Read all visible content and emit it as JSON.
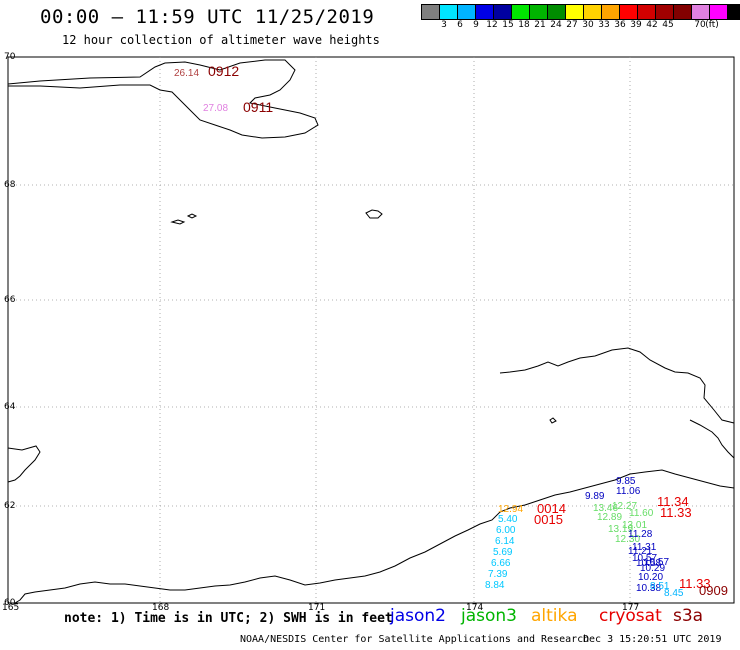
{
  "header": {
    "title": "00:00 – 11:59 UTC 11/25/2019",
    "subtitle": "12 hour collection of altimeter wave heights"
  },
  "colorbar": {
    "unit_label": "(ft)",
    "colors": [
      "#7f7f7f",
      "#00e5ff",
      "#00b4ff",
      "#0000e6",
      "#0000a0",
      "#00e600",
      "#00b400",
      "#008c00",
      "#ffff00",
      "#ffd200",
      "#ffa500",
      "#ff0000",
      "#d20000",
      "#a00000",
      "#820000",
      "#e080e0",
      "#ff00ff",
      "#000000"
    ],
    "labels": [
      "3",
      "6",
      "9",
      "12",
      "15",
      "18",
      "21",
      "24",
      "27",
      "30",
      "33",
      "36",
      "39",
      "42",
      "45",
      "70"
    ]
  },
  "map": {
    "lat_labels": [
      "70",
      "68",
      "66",
      "64",
      "62",
      "60"
    ],
    "lon_labels": [
      "165",
      "168",
      "171",
      "174",
      "177"
    ]
  },
  "observations": [
    {
      "text": "26.14",
      "color": "#b04040"
    },
    {
      "text": "0912",
      "color": "#8b0000"
    },
    {
      "text": "27.08",
      "color": "#e080e0"
    },
    {
      "text": "0911",
      "color": "#8b0000"
    },
    {
      "text": "9.85",
      "color": "#0000c0"
    },
    {
      "text": "11.06",
      "color": "#0000c0"
    },
    {
      "text": "9.89",
      "color": "#0000c0"
    },
    {
      "text": "11.34",
      "color": "#e60000"
    },
    {
      "text": "11.33",
      "color": "#e60000"
    },
    {
      "text": "12.94",
      "color": "#ffa500"
    },
    {
      "text": "0014",
      "color": "#e60000"
    },
    {
      "text": "0015",
      "color": "#e60000"
    },
    {
      "text": "13.46",
      "color": "#66dd66"
    },
    {
      "text": "12.27",
      "color": "#66dd66"
    },
    {
      "text": "12.89",
      "color": "#66dd66"
    },
    {
      "text": "11.60",
      "color": "#66dd66"
    },
    {
      "text": "13.01",
      "color": "#66dd66"
    },
    {
      "text": "13.19",
      "color": "#66dd66"
    },
    {
      "text": "5.40",
      "color": "#00c8ff"
    },
    {
      "text": "6.00",
      "color": "#00c8ff"
    },
    {
      "text": "6.14",
      "color": "#00c8ff"
    },
    {
      "text": "5.69",
      "color": "#00c8ff"
    },
    {
      "text": "6.66",
      "color": "#00c8ff"
    },
    {
      "text": "7.39",
      "color": "#00c8ff"
    },
    {
      "text": "8.84",
      "color": "#00c8ff"
    },
    {
      "text": "12.30",
      "color": "#66dd66"
    },
    {
      "text": "11.28",
      "color": "#0000c0"
    },
    {
      "text": "11.31",
      "color": "#0000c0"
    },
    {
      "text": "11.21",
      "color": "#0000c0"
    },
    {
      "text": "10.57",
      "color": "#0000c0"
    },
    {
      "text": "10.58",
      "color": "#0000c0"
    },
    {
      "text": "10.29",
      "color": "#0000c0"
    },
    {
      "text": "10.57",
      "color": "#0000c0"
    },
    {
      "text": "10.20",
      "color": "#0000c0"
    },
    {
      "text": "10.38",
      "color": "#0000c0"
    },
    {
      "text": "8.51",
      "color": "#00b4ff"
    },
    {
      "text": "8.45",
      "color": "#00b4ff"
    },
    {
      "text": "11.33",
      "color": "#e60000"
    },
    {
      "text": "0909",
      "color": "#8b0000"
    }
  ],
  "footer": {
    "note": "note: 1) Time is in UTC; 2) SWH is in feet",
    "satellites": [
      {
        "name": "jason2",
        "color": "#0000e6"
      },
      {
        "name": "jason3",
        "color": "#00b400"
      },
      {
        "name": "altika",
        "color": "#ffa500"
      },
      {
        "name": "cryosat",
        "color": "#e60000"
      },
      {
        "name": "s3a",
        "color": "#8b0000"
      }
    ],
    "credit": "NOAA/NESDIS Center for Satellite Applications and Research",
    "timestamp": "Dec  3 15:20:51 UTC 2019"
  }
}
